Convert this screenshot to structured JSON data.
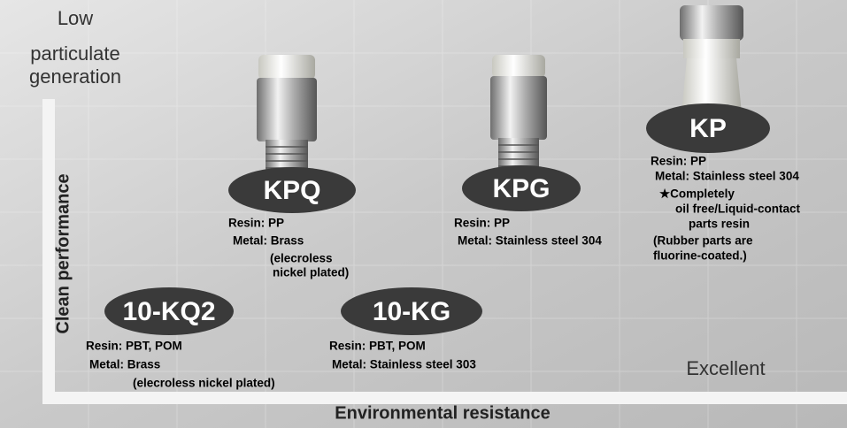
{
  "axes": {
    "y_end_label": [
      "Low",
      "particulate",
      "generation"
    ],
    "y_label": "Clean performance",
    "x_label": "Environmental resistance",
    "x_end_label": "Excellent"
  },
  "products": [
    {
      "name": "KPQ",
      "lines": [
        "Resin: PP",
        "Metal: Brass",
        "(elecroless",
        "nickel plated)"
      ]
    },
    {
      "name": "KPG",
      "lines": [
        "Resin: PP",
        "Metal: Stainless steel 304"
      ]
    },
    {
      "name": "KP",
      "lines": [
        "Resin: PP",
        "Metal: Stainless steel 304",
        "★Completely",
        "oil free/Liquid-contact",
        "parts resin",
        "(Rubber parts are",
        "fluorine-coated.)"
      ]
    },
    {
      "name": "10-KQ2",
      "lines": [
        "Resin: PBT, POM",
        "Metal: Brass",
        "(elecroless nickel plated)"
      ]
    },
    {
      "name": "10-KG",
      "lines": [
        "Resin: PBT, POM",
        "Metal: Stainless steel 303"
      ]
    }
  ]
}
